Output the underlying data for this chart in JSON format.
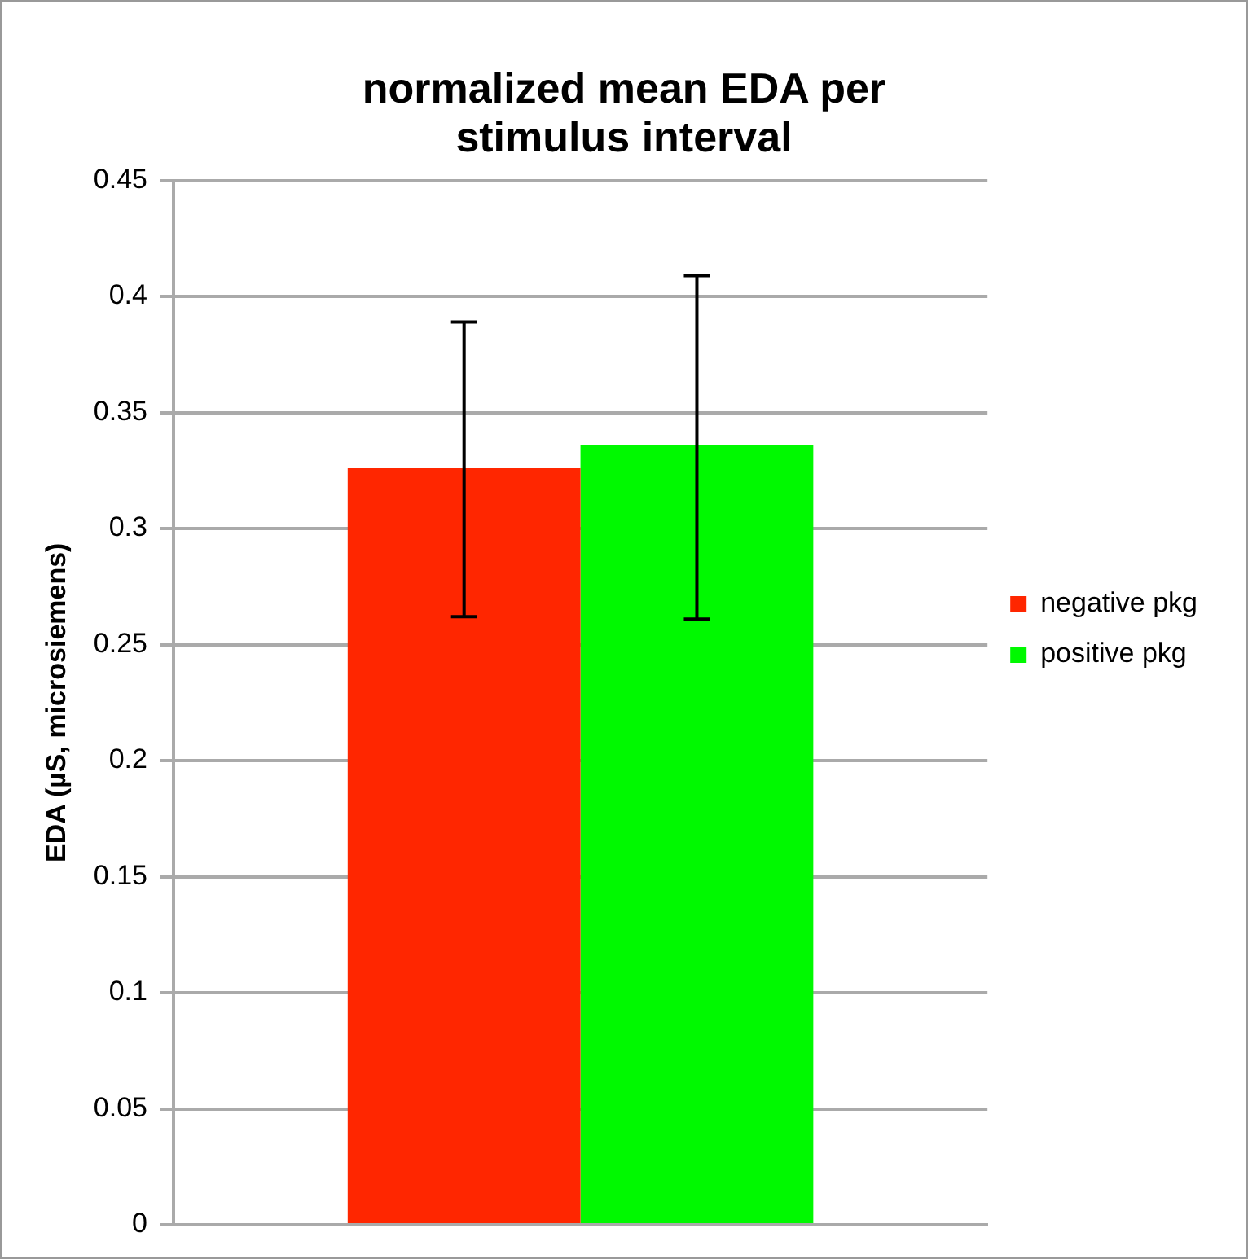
{
  "chart_data": {
    "type": "bar",
    "title": "normalized mean EDA per stimulus interval",
    "ylabel": "EDA (µS, microsiemens)",
    "categories": [
      null
    ],
    "series": [
      {
        "name": "negative pkg",
        "color": "#ff2600",
        "values": [
          0.326
        ],
        "errors": [
          [
            0.262,
            0.389
          ]
        ]
      },
      {
        "name": "positive pkg",
        "color": "#00f900",
        "values": [
          0.336
        ],
        "errors": [
          [
            0.261,
            0.409
          ]
        ]
      }
    ],
    "ylim": [
      0,
      0.45
    ],
    "yticks": [
      0,
      0.05,
      0.1,
      0.15,
      0.2,
      0.25,
      0.3,
      0.35,
      0.4,
      0.45
    ],
    "grid": "y",
    "legend": "right",
    "tick_labels": "y"
  }
}
